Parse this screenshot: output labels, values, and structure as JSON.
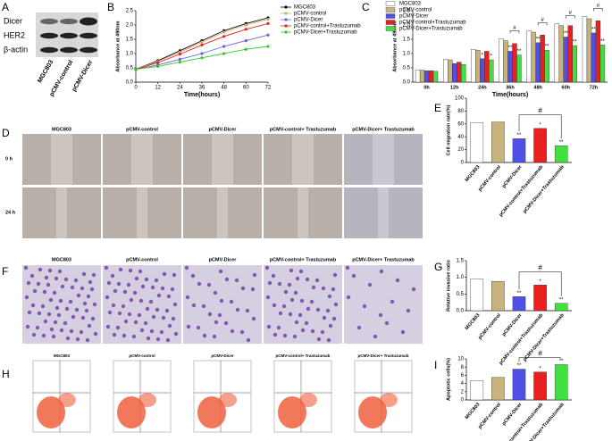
{
  "figure": {
    "letters": [
      "A",
      "B",
      "C",
      "D",
      "E",
      "F",
      "G",
      "H",
      "I"
    ],
    "blot": {
      "bands": [
        "Dicer",
        "HER2",
        "β-actin"
      ],
      "lanes": [
        "MGC803",
        "pCMV-control",
        "pCMV-Dicer"
      ]
    },
    "wound": {
      "columns": [
        "MGC803",
        "pCMV-control",
        "pCMV-Dicer",
        "pCMV-control+ Trastuzumab",
        "pCMV-Dicer+ Trastuzumab"
      ],
      "rows": [
        "0 h",
        "24 h"
      ]
    },
    "invasion": {
      "columns": [
        "MGC803",
        "pCMV-control",
        "pCMV-Dicer",
        "pCMV-control+ Trastuzumab",
        "pCMV-Dicer+ Trastuzumab"
      ]
    },
    "flow": {
      "columns": [
        "MGC803",
        "pCMV-control",
        "pCMV-Dicer",
        "pCMV-control+ Trastuzumab",
        "pCMV-Dicer+ Trastuzumab"
      ]
    }
  },
  "chart_data": [
    {
      "type": "line",
      "xlabel": "Time(hours)",
      "ylabel": "Absorbance at 490nm",
      "x": [
        0,
        12,
        24,
        36,
        48,
        60,
        72
      ],
      "xlim": [
        0,
        72
      ],
      "xticks": [
        0,
        12,
        24,
        36,
        48,
        60,
        72
      ],
      "ylim": [
        0,
        2.5
      ],
      "yticks": [
        {
          "value": 0,
          "label": "0.0"
        },
        0.5,
        {
          "value": 1,
          "label": "1.0"
        },
        1.5,
        {
          "value": 2,
          "label": "2.0"
        },
        2.5
      ],
      "legend": "right",
      "series": [
        {
          "name": "MGC803",
          "color": "#000000",
          "values": [
            0.45,
            0.75,
            1.1,
            1.45,
            1.8,
            2.05,
            2.25
          ]
        },
        {
          "name": "pCMV-control",
          "color": "#c8b06e",
          "values": [
            0.45,
            0.72,
            1.05,
            1.4,
            1.75,
            2.0,
            2.2
          ]
        },
        {
          "name": "pCMV-Dicer",
          "color": "#6464e0",
          "values": [
            0.45,
            0.6,
            0.8,
            1.0,
            1.25,
            1.45,
            1.65
          ]
        },
        {
          "name": "pCMV-control+Trastuzumab",
          "color": "#e82020",
          "values": [
            0.45,
            0.68,
            0.98,
            1.3,
            1.6,
            1.85,
            2.05
          ]
        },
        {
          "name": "pCMV-Dicer+Trastuzumab",
          "color": "#30c830",
          "values": [
            0.45,
            0.55,
            0.7,
            0.85,
            1.0,
            1.15,
            1.25
          ]
        }
      ]
    },
    {
      "type": "bar",
      "xlabel": "Time(hours)",
      "ylabel": "Absorbance at 490nm",
      "categories": [
        "0h",
        "12h",
        "24h",
        "36h",
        "48h",
        "60h",
        "72h"
      ],
      "ylim": [
        0,
        2.5
      ],
      "yticks": [
        {
          "value": 0,
          "label": "0.0"
        },
        0.5,
        {
          "value": 1,
          "label": "1.0"
        },
        1.5,
        {
          "value": 2,
          "label": "2.0"
        },
        2.5
      ],
      "legend": "upper left",
      "bracket_labels": [
        null,
        null,
        null,
        "#",
        "#",
        "#",
        "#"
      ],
      "series": [
        {
          "name": "MGC803",
          "color": "#ffffff",
          "values": [
            0.42,
            0.8,
            1.15,
            1.52,
            1.8,
            2.05,
            2.3
          ]
        },
        {
          "name": "pCMV-control",
          "color": "#c8b47a",
          "values": [
            0.42,
            0.78,
            1.12,
            1.45,
            1.75,
            1.98,
            2.22
          ]
        },
        {
          "name": "pCMV-Dicer",
          "color": "#5050e8",
          "values": [
            0.4,
            0.65,
            0.82,
            1.08,
            1.38,
            1.58,
            1.72
          ],
          "significance": [
            null,
            null,
            "*",
            "**",
            "**",
            "**",
            "**"
          ]
        },
        {
          "name": "pCMV-control+Trastuzumab",
          "color": "#e82020",
          "values": [
            0.4,
            0.7,
            1.08,
            1.35,
            1.65,
            1.98,
            2.15
          ]
        },
        {
          "name": "pCMV-Dicer+Trastuzumab",
          "color": "#40e040",
          "values": [
            0.38,
            0.62,
            0.78,
            0.95,
            1.12,
            1.28,
            1.3
          ],
          "significance": [
            null,
            null,
            "*",
            "**",
            "**",
            "**",
            "**"
          ]
        }
      ]
    },
    {
      "type": "bar",
      "ylabel": "Cell migration rate(%)",
      "categories": [
        "MGC803",
        "pCMV-control",
        "pCMV-Dicer",
        "pCMV-control+Trastuzumab",
        "pCMV-Dicer+Trastuzumab"
      ],
      "values": [
        62,
        63,
        37,
        53,
        26
      ],
      "colors": [
        "#ffffff",
        "#c8b47a",
        "#5050e8",
        "#e82020",
        "#40e040"
      ],
      "significance": [
        null,
        null,
        "**",
        "*",
        "**"
      ],
      "bracket": {
        "label": "#",
        "between": [
          "pCMV-Dicer",
          "pCMV-Dicer+Trastuzumab"
        ]
      },
      "ylim": [
        0,
        100
      ],
      "yticks": [
        0,
        20,
        40,
        60,
        80,
        100
      ]
    },
    {
      "type": "bar",
      "ylabel": "Relative invasive ratio",
      "categories": [
        "MGC803",
        "pCMV-control",
        "pCMV-Dicer",
        "pCMV-control+Trastuzumab",
        "pCMV-Dicer+Trastuzumab"
      ],
      "values": [
        0.95,
        0.88,
        0.42,
        0.77,
        0.22
      ],
      "colors": [
        "#ffffff",
        "#c8b47a",
        "#5050e8",
        "#e82020",
        "#40e040"
      ],
      "significance": [
        null,
        null,
        "**",
        "*",
        "**"
      ],
      "bracket": {
        "label": "#",
        "between": [
          "pCMV-Dicer",
          "pCMV-Dicer+Trastuzumab"
        ]
      },
      "ylim": [
        0,
        1.5
      ],
      "yticks": [
        {
          "value": 0,
          "label": "0.0"
        },
        0.5,
        {
          "value": 1,
          "label": "1.0"
        },
        1.5
      ]
    },
    {
      "type": "bar",
      "ylabel": "Apoptotic cells(%)",
      "categories": [
        "MGC803",
        "pCMV-control",
        "pCMV-Dicer",
        "pCMV-control+Trastuzumab",
        "pCMV-Dicer+Trastuzumab"
      ],
      "values": [
        4.7,
        5.5,
        7.5,
        6.8,
        8.6
      ],
      "colors": [
        "#ffffff",
        "#c8b47a",
        "#5050e8",
        "#e82020",
        "#40e040"
      ],
      "significance": [
        null,
        null,
        "**",
        "*",
        "**"
      ],
      "bracket": {
        "label": "#",
        "between": [
          "pCMV-Dicer",
          "pCMV-Dicer+Trastuzumab"
        ]
      },
      "ylim": [
        0,
        10
      ],
      "yticks": [
        0,
        2,
        4,
        6,
        8,
        10
      ]
    }
  ]
}
